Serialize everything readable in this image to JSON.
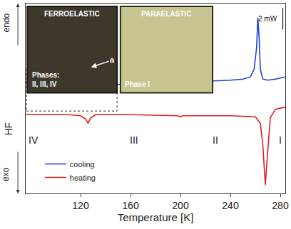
{
  "chart_data": {
    "type": "line",
    "x_label": "Temperature [K]",
    "y_label": "HF",
    "xlim": [
      76,
      284
    ],
    "xticks": [
      120,
      160,
      200,
      240,
      280
    ],
    "ylim": [
      0,
      17.6
    ],
    "yticks": [],
    "tick_labels": "x",
    "grid": false,
    "legend": "lower left",
    "series": [
      {
        "name": "cooling",
        "color": "#1f3fd6",
        "x": [
          76,
          80,
          84,
          90,
          100,
          110,
          120,
          140,
          160,
          180,
          200,
          220,
          240,
          250,
          256,
          259,
          261,
          262,
          263,
          264,
          266,
          270,
          276,
          284
        ],
        "values": [
          10.3,
          10.6,
          10.7,
          10.5,
          10.2,
          10.1,
          10.1,
          10.1,
          10.1,
          10.2,
          10.3,
          10.4,
          10.5,
          10.6,
          10.8,
          11.5,
          13.5,
          16.3,
          14.5,
          11.5,
          10.6,
          10.5,
          10.6,
          10.8
        ]
      },
      {
        "name": "heating",
        "color": "#e02020",
        "x": [
          76,
          90,
          110,
          120,
          124,
          126,
          128,
          132,
          160,
          198,
          200,
          202,
          240,
          260,
          264,
          266,
          268,
          270,
          272,
          276,
          284
        ],
        "values": [
          7.3,
          7.3,
          7.3,
          7.2,
          6.9,
          6.5,
          7.0,
          7.3,
          7.3,
          7.2,
          7.1,
          7.2,
          7.2,
          7.1,
          6.5,
          4.5,
          0.8,
          4.0,
          7.0,
          7.8,
          8.0
        ]
      }
    ],
    "direction_labels": {
      "up": "endo",
      "down": "exo"
    },
    "phase_labels": [
      {
        "text": "IV",
        "x": 82
      },
      {
        "text": "III",
        "x": 163
      },
      {
        "text": "II",
        "x": 228
      },
      {
        "text": "I",
        "x": 280
      }
    ],
    "scale_bar": {
      "value": 2,
      "label": "2 mW"
    },
    "insets": [
      {
        "title": "FERROELASTIC",
        "caption": [
          "Phases:",
          "II, III, IV"
        ],
        "arrow_label": "a"
      },
      {
        "title": "PARAELASTIC",
        "caption": [
          "Phase I"
        ]
      }
    ]
  }
}
